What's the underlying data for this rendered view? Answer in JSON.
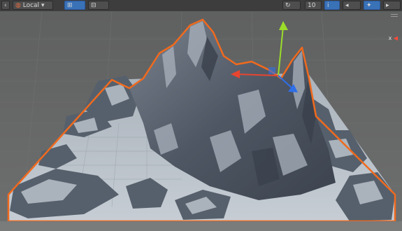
{
  "toolbar": {
    "pivot_mode_label": "Local",
    "scale_value": "10",
    "colors": {
      "background": "#3d3d3d",
      "button": "#4e4e4e",
      "active_button": "#3a72b8"
    }
  },
  "scene_view": {
    "axis_label": "x",
    "object": "terrain-mountains",
    "selection_outline_color": "#f06a1e",
    "terrain_color": "#4d5563",
    "terrain_highlight_color": "#c9d0d8",
    "ground_color": "#b8c0c8",
    "gizmo": {
      "x_axis_color": "#e8452f",
      "y_axis_color": "#9bdc2a",
      "z_axis_color": "#2f6fe8"
    }
  }
}
